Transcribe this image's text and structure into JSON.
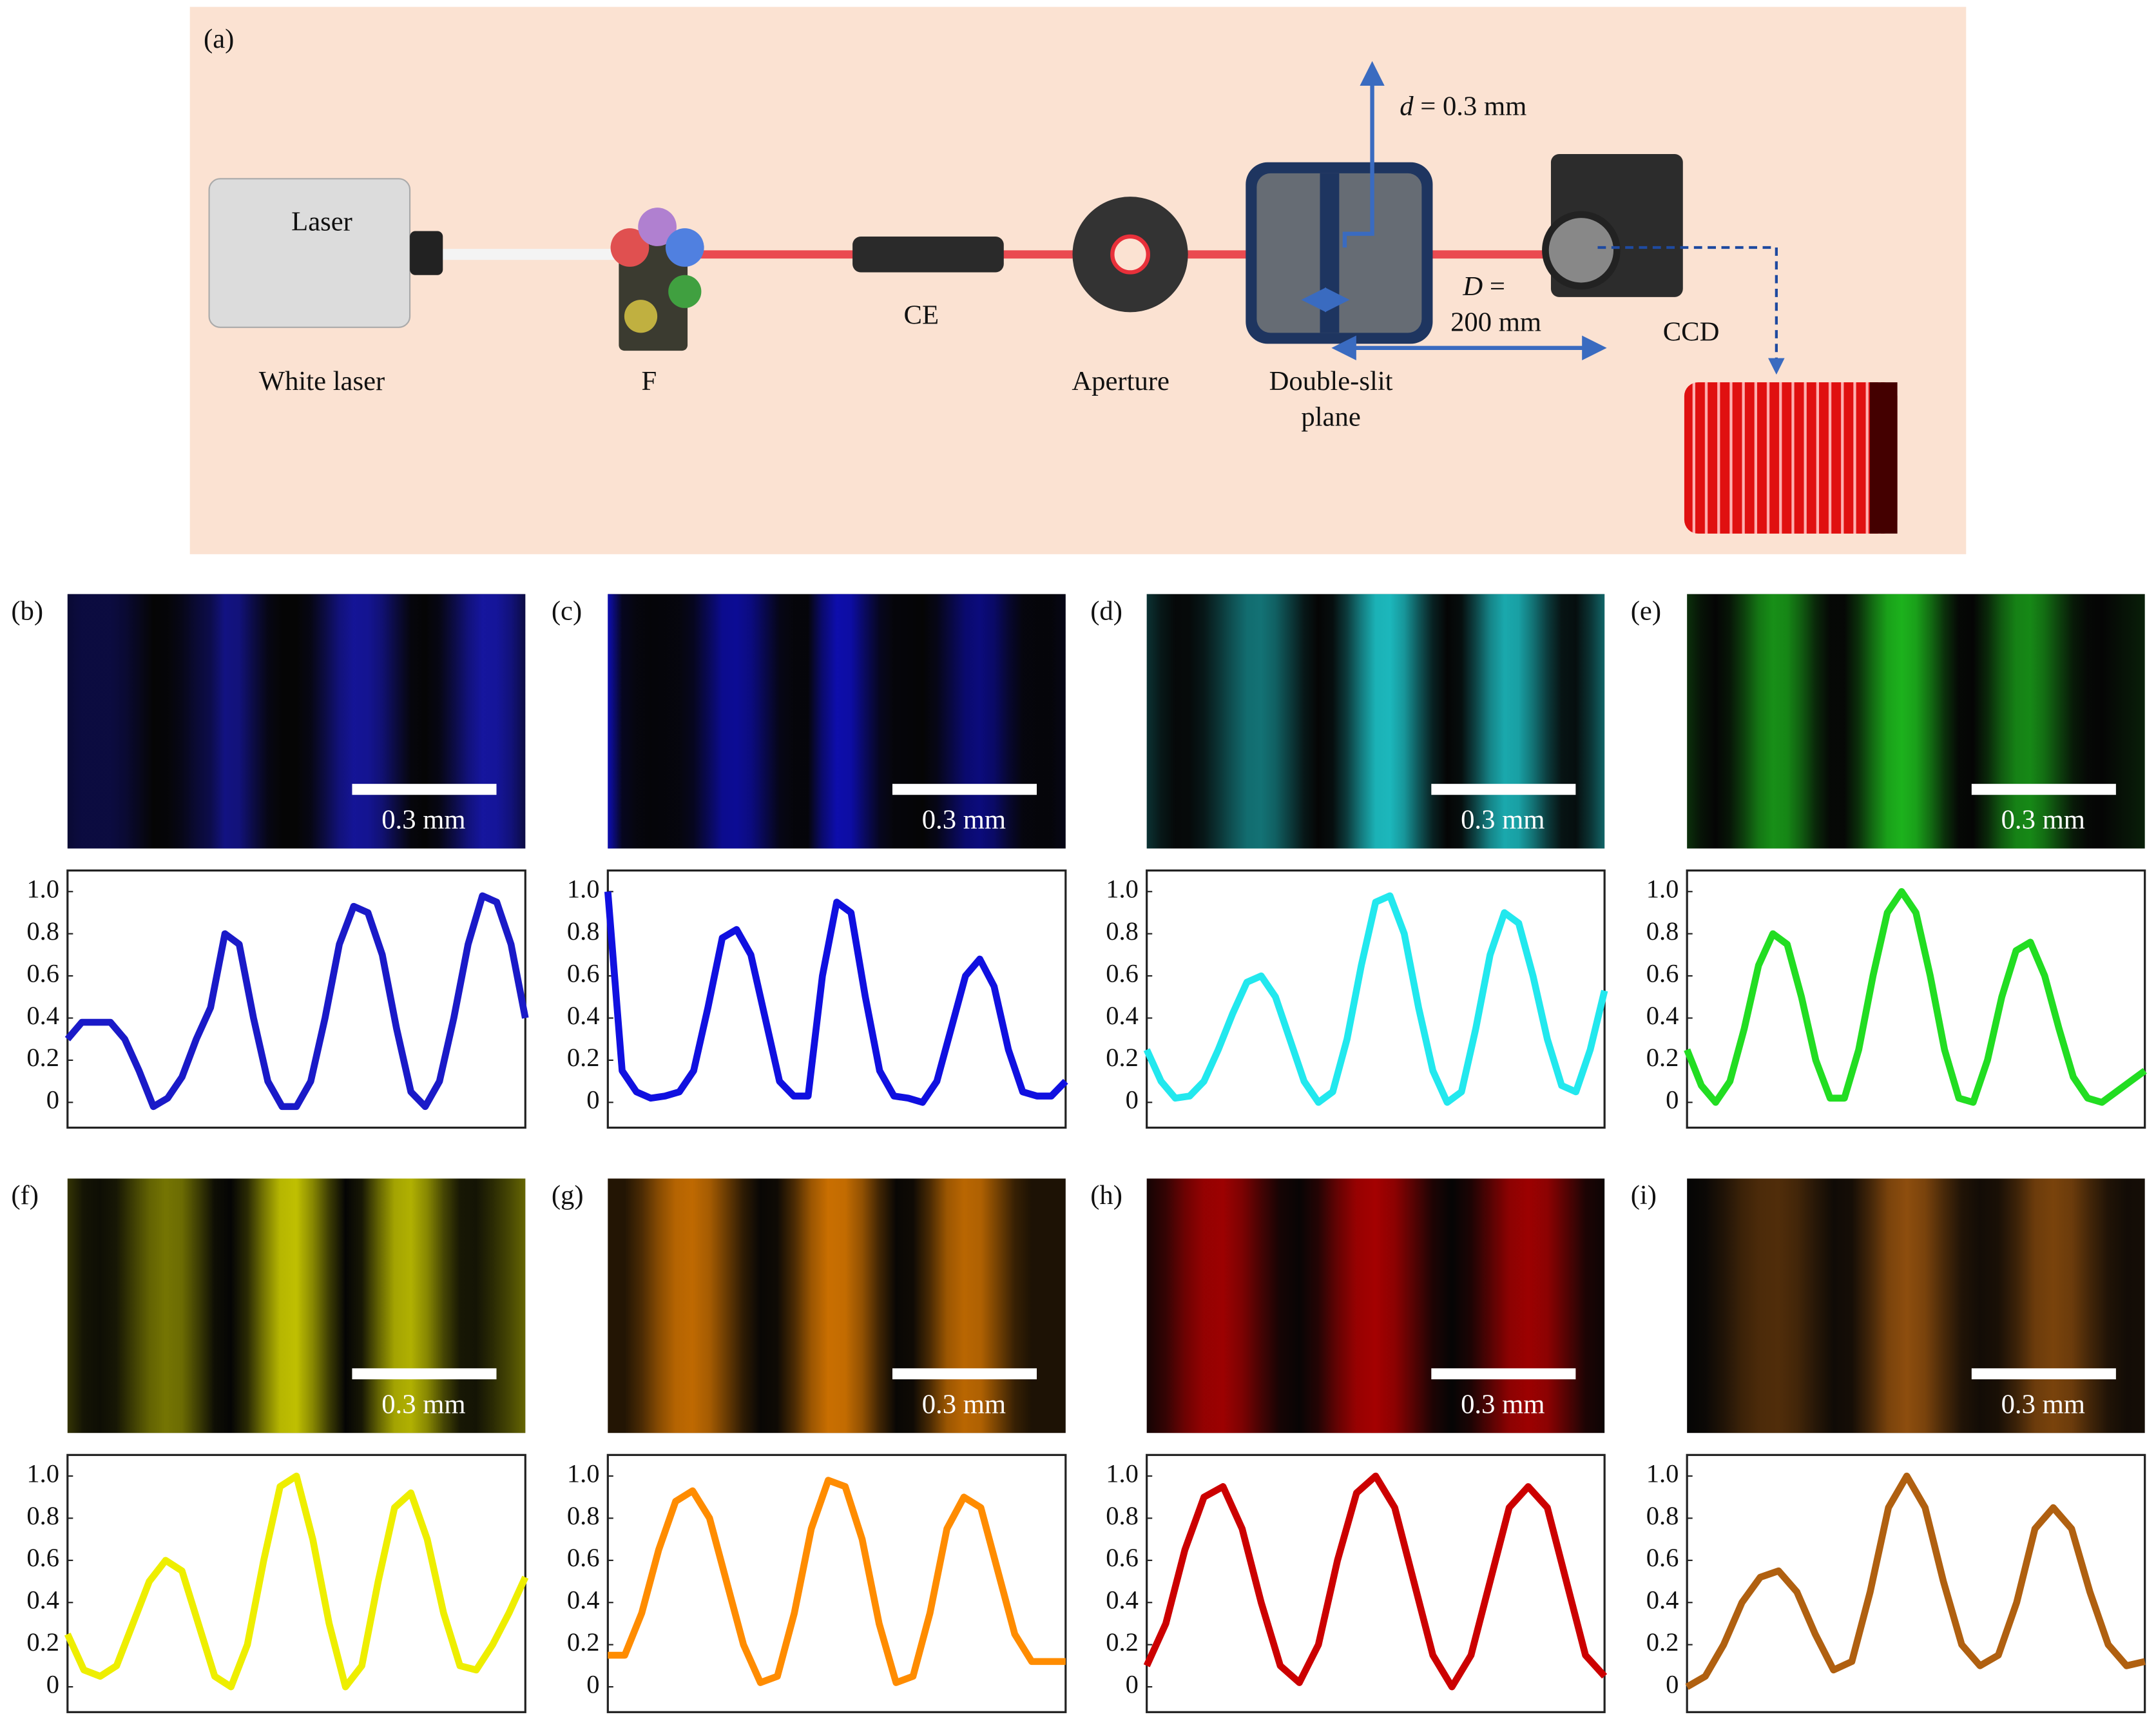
{
  "diagram": {
    "panel_label": "(a)",
    "laser_box": "Laser",
    "laser": "White laser",
    "filter": "F",
    "ce": "CE",
    "aperture": "Aperture",
    "slit_line1": "Double-slit",
    "slit_line2": "plane",
    "ccd": "CCD",
    "d_symbol": "d",
    "d_text": "= 0.3 mm",
    "D_symbol": "D",
    "D_text": "=",
    "D_value": "200 mm"
  },
  "panels": [
    {
      "label": "(b)",
      "scale_bar": "0.3 mm"
    },
    {
      "label": "(c)",
      "scale_bar": "0.3 mm"
    },
    {
      "label": "(d)",
      "scale_bar": "0.3 mm"
    },
    {
      "label": "(e)",
      "scale_bar": "0.3 mm"
    },
    {
      "label": "(f)",
      "scale_bar": "0.3 mm"
    },
    {
      "label": "(g)",
      "scale_bar": "0.3 mm"
    },
    {
      "label": "(h)",
      "scale_bar": "0.3 mm"
    },
    {
      "label": "(i)",
      "scale_bar": "0.3 mm"
    }
  ],
  "chart_data": [
    {
      "type": "line",
      "color": "#1a1ac8",
      "ylim": [
        -0.12,
        1.1
      ],
      "yticks": [
        0,
        0.2,
        0.4,
        0.6,
        0.8,
        {
          "value": 1,
          "label": "1.0"
        }
      ],
      "values": [
        0.3,
        0.38,
        0.38,
        0.38,
        0.3,
        0.15,
        -0.02,
        0.02,
        0.12,
        0.3,
        0.45,
        0.8,
        0.75,
        0.4,
        0.1,
        -0.02,
        -0.02,
        0.1,
        0.4,
        0.75,
        0.93,
        0.9,
        0.7,
        0.35,
        0.05,
        -0.02,
        0.1,
        0.4,
        0.75,
        0.98,
        0.95,
        0.75,
        0.4
      ]
    },
    {
      "type": "line",
      "color": "#1010e0",
      "ylim": [
        -0.12,
        1.1
      ],
      "yticks": [
        0,
        0.2,
        0.4,
        0.6,
        0.8,
        {
          "value": 1,
          "label": "1.0"
        }
      ],
      "values": [
        1.0,
        0.15,
        0.05,
        0.02,
        0.03,
        0.05,
        0.15,
        0.45,
        0.78,
        0.82,
        0.7,
        0.4,
        0.1,
        0.03,
        0.03,
        0.6,
        0.95,
        0.9,
        0.5,
        0.15,
        0.03,
        0.02,
        0.0,
        0.1,
        0.35,
        0.6,
        0.68,
        0.55,
        0.25,
        0.05,
        0.03,
        0.03,
        0.1
      ]
    },
    {
      "type": "line",
      "color": "#22e8ee",
      "ylim": [
        -0.12,
        1.1
      ],
      "yticks": [
        0,
        0.2,
        0.4,
        0.6,
        0.8,
        {
          "value": 1,
          "label": "1.0"
        }
      ],
      "values": [
        0.25,
        0.1,
        0.02,
        0.03,
        0.1,
        0.25,
        0.42,
        0.57,
        0.6,
        0.5,
        0.3,
        0.1,
        0.0,
        0.05,
        0.3,
        0.65,
        0.95,
        0.98,
        0.8,
        0.45,
        0.15,
        0.0,
        0.05,
        0.35,
        0.7,
        0.9,
        0.85,
        0.6,
        0.3,
        0.08,
        0.05,
        0.25,
        0.53
      ]
    },
    {
      "type": "line",
      "color": "#22dd22",
      "ylim": [
        -0.12,
        1.1
      ],
      "yticks": [
        0,
        0.2,
        0.4,
        0.6,
        0.8,
        {
          "value": 1,
          "label": "1.0"
        }
      ],
      "values": [
        0.25,
        0.08,
        0.0,
        0.1,
        0.35,
        0.65,
        0.8,
        0.75,
        0.5,
        0.2,
        0.02,
        0.02,
        0.25,
        0.6,
        0.9,
        1.0,
        0.9,
        0.6,
        0.25,
        0.02,
        0.0,
        0.2,
        0.5,
        0.72,
        0.76,
        0.6,
        0.35,
        0.12,
        0.02,
        0.0,
        0.05,
        0.1,
        0.15
      ]
    },
    {
      "type": "line",
      "color": "#eeee00",
      "ylim": [
        -0.12,
        1.1
      ],
      "yticks": [
        0,
        0.2,
        0.4,
        0.6,
        0.8,
        {
          "value": 1,
          "label": "1.0"
        }
      ],
      "values": [
        0.25,
        0.08,
        0.05,
        0.1,
        0.3,
        0.5,
        0.6,
        0.55,
        0.3,
        0.05,
        0.0,
        0.2,
        0.6,
        0.95,
        1.0,
        0.7,
        0.3,
        0.0,
        0.1,
        0.5,
        0.85,
        0.92,
        0.7,
        0.35,
        0.1,
        0.08,
        0.2,
        0.35,
        0.52
      ]
    },
    {
      "type": "line",
      "color": "#ff8c00",
      "ylim": [
        -0.12,
        1.1
      ],
      "yticks": [
        0,
        0.2,
        0.4,
        0.6,
        0.8,
        {
          "value": 1,
          "label": "1.0"
        }
      ],
      "values": [
        0.15,
        0.15,
        0.35,
        0.65,
        0.88,
        0.93,
        0.8,
        0.5,
        0.2,
        0.02,
        0.05,
        0.35,
        0.75,
        0.98,
        0.95,
        0.7,
        0.3,
        0.02,
        0.05,
        0.35,
        0.75,
        0.9,
        0.85,
        0.55,
        0.25,
        0.12,
        0.12,
        0.12
      ]
    },
    {
      "type": "line",
      "color": "#cc0000",
      "ylim": [
        -0.12,
        1.1
      ],
      "yticks": [
        0,
        0.2,
        0.4,
        0.6,
        0.8,
        {
          "value": 1,
          "label": "1.0"
        }
      ],
      "values": [
        0.1,
        0.3,
        0.65,
        0.9,
        0.95,
        0.75,
        0.4,
        0.1,
        0.02,
        0.2,
        0.6,
        0.92,
        1.0,
        0.85,
        0.5,
        0.15,
        0.0,
        0.15,
        0.5,
        0.85,
        0.95,
        0.85,
        0.5,
        0.15,
        0.05
      ]
    },
    {
      "type": "line",
      "color": "#b06010",
      "ylim": [
        -0.12,
        1.1
      ],
      "yticks": [
        0,
        0.2,
        0.4,
        0.6,
        0.8,
        {
          "value": 1,
          "label": "1.0"
        }
      ],
      "values": [
        0.0,
        0.05,
        0.2,
        0.4,
        0.52,
        0.55,
        0.45,
        0.25,
        0.08,
        0.12,
        0.45,
        0.85,
        1.0,
        0.85,
        0.5,
        0.2,
        0.1,
        0.15,
        0.4,
        0.75,
        0.85,
        0.75,
        0.45,
        0.2,
        0.1,
        0.12
      ]
    }
  ]
}
